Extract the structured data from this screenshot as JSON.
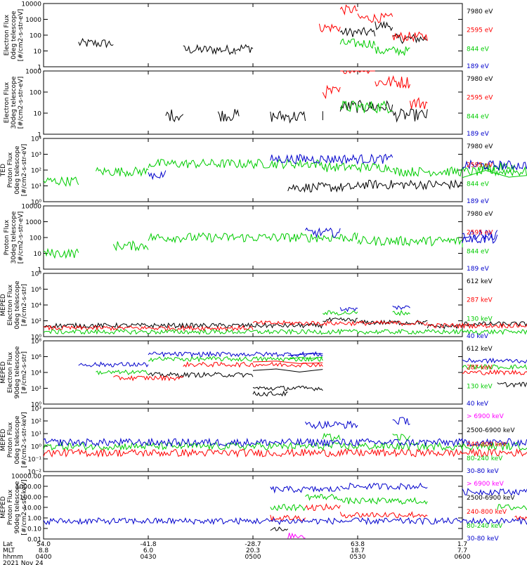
{
  "chart_data": {
    "type": "line",
    "x_axis": {
      "rows": [
        {
          "label": "Lat",
          "values": [
            "54.0",
            "-41.8",
            "-28.7",
            "63.8",
            "1.7"
          ]
        },
        {
          "label": "MLT",
          "values": [
            "8.8",
            "6.0",
            "20.3",
            "18.7",
            "7.7"
          ]
        },
        {
          "label": "hhmm",
          "values": [
            "0400",
            "0430",
            "0500",
            "0530",
            "0600"
          ]
        }
      ],
      "date": "2021 Nov 24"
    },
    "panels": [
      {
        "ylabel": [
          "Electron Flux",
          "0deg telescope",
          "[#/cm2-s-str-eV]"
        ],
        "scale": "log",
        "ticks": [
          "10000",
          "1000",
          "100",
          "10",
          "1"
        ],
        "series": [
          {
            "name": "7980 eV",
            "color": "#000000",
            "segments": [
              [
                4010,
                4020,
                30
              ],
              [
                4040,
                4055,
                12
              ],
              [
                4055,
                4100,
                15
              ],
              [
                4125,
                4135,
                150
              ],
              [
                4135,
                4140,
                400
              ],
              [
                4140,
                4150,
                60
              ],
              [
                4225,
                4235,
                30
              ],
              [
                4235,
                4245,
                80
              ],
              [
                4245,
                4255,
                20
              ],
              [
                4300,
                4320,
                20
              ]
            ]
          },
          {
            "name": "2595 eV",
            "color": "#ff0000",
            "segments": [
              [
                4119,
                4125,
                300
              ],
              [
                4125,
                4130,
                4000
              ],
              [
                4130,
                4140,
                1200
              ],
              [
                4140,
                4150,
                80
              ],
              [
                4225,
                4235,
                40
              ],
              [
                4235,
                4245,
                300
              ],
              [
                4245,
                4255,
                60
              ]
            ]
          },
          {
            "name": "844 eV",
            "color": "#00cc00",
            "segments": [
              [
                4125,
                4135,
                30
              ],
              [
                4135,
                4145,
                10
              ]
            ]
          },
          {
            "name": "189 eV",
            "color": "#0000cc",
            "segments": []
          }
        ]
      },
      {
        "ylabel": [
          "Electron Flux",
          "30deg telescope",
          "[#/cm2-s-str-eV]"
        ],
        "scale": "log",
        "ticks": [
          "1000",
          "100",
          "10",
          "1"
        ],
        "series": [
          {
            "name": "7980 eV",
            "color": "#000000",
            "segments": [
              [
                4035,
                4040,
                8
              ],
              [
                4050,
                4056,
                8
              ],
              [
                4065,
                4075,
                7
              ],
              [
                4080,
                4120,
                8
              ],
              [
                4125,
                4140,
                20
              ],
              [
                4140,
                4150,
                8
              ],
              [
                4225,
                4235,
                15
              ],
              [
                4235,
                4245,
                40
              ],
              [
                4245,
                4255,
                10
              ]
            ]
          },
          {
            "name": "2595 eV",
            "color": "#ff0000",
            "segments": [
              [
                4120,
                4125,
                100
              ],
              [
                4125,
                4135,
                1500
              ],
              [
                4135,
                4145,
                300
              ],
              [
                4145,
                4150,
                30
              ],
              [
                4225,
                4230,
                80
              ],
              [
                4230,
                4240,
                250
              ],
              [
                4240,
                4255,
                50
              ]
            ]
          },
          {
            "name": "844 eV",
            "color": "#00cc00",
            "segments": [
              [
                4125,
                4140,
                20
              ]
            ]
          },
          {
            "name": "189 eV",
            "color": "#0000cc",
            "segments": []
          }
        ]
      },
      {
        "ylabel": [
          "TED",
          "Proton Flux",
          "0deg telescope",
          "[#/cm2-s-str-eV]"
        ],
        "scale": "log",
        "ticks": [
          "10⁴",
          "10³",
          "10²",
          "10¹",
          "10⁰"
        ],
        "series": [
          {
            "name": "7980 eV",
            "color": "#000000",
            "segments": [
              [
                4110,
                4130,
                8
              ],
              [
                4130,
                4160,
                12
              ]
            ]
          },
          {
            "name": "2595 eV",
            "color": "#ff0000",
            "segments": []
          },
          {
            "name": "844 eV",
            "color": "#00cc00",
            "segments": [
              [
                4000,
                4010,
                20
              ],
              [
                4015,
                4030,
                80
              ],
              [
                4030,
                4080,
                250
              ],
              [
                4080,
                4140,
                150
              ],
              [
                4140,
                4180,
                80
              ],
              [
                4180,
                4200,
                60
              ],
              [
                4205,
                4215,
                150
              ],
              [
                4235,
                4245,
                20
              ],
              [
                4245,
                4260,
                100
              ],
              [
                4290,
                4300,
                20
              ],
              [
                4300,
                4320,
                50
              ]
            ]
          },
          {
            "name": "189 eV",
            "color": "#0000cc",
            "segments": [
              [
                4030,
                4035,
                50
              ],
              [
                4105,
                4140,
                500
              ],
              [
                4160,
                4180,
                200
              ],
              [
                4225,
                4250,
                2000
              ]
            ]
          }
        ]
      },
      {
        "ylabel": [
          "Proton Flux",
          "30deg telescope",
          "[#/cm2-s-str-eV]"
        ],
        "scale": "log",
        "ticks": [
          "10000",
          "1000",
          "100",
          "10",
          "1"
        ],
        "series": [
          {
            "name": "7980 eV",
            "color": "#000000",
            "segments": []
          },
          {
            "name": "2595 eV",
            "color": "#ff0000",
            "segments": []
          },
          {
            "name": "844 eV",
            "color": "#00cc00",
            "segments": [
              [
                4000,
                4010,
                10
              ],
              [
                4020,
                4030,
                30
              ],
              [
                4030,
                4090,
                100
              ],
              [
                4090,
                4160,
                60
              ],
              [
                4160,
                4200,
                40
              ],
              [
                4235,
                4240,
                10
              ],
              [
                4240,
                4260,
                40
              ],
              [
                4300,
                4320,
                80
              ]
            ]
          },
          {
            "name": "189 eV",
            "color": "#0000cc",
            "segments": [
              [
                4115,
                4125,
                200
              ],
              [
                4160,
                4170,
                150
              ],
              [
                4200,
                4210,
                80
              ],
              [
                4225,
                4240,
                1500
              ],
              [
                4260,
                4265,
                60
              ]
            ]
          }
        ]
      },
      {
        "ylabel": [
          "MEPED",
          "Electron Flux",
          "0deg telescope",
          "[#/cm2-s-str]"
        ],
        "scale": "log",
        "ticks": [
          "10⁸",
          "10⁶",
          "10⁴",
          "10²",
          "10⁰"
        ],
        "series": [
          {
            "name": "612 keV",
            "color": "#000000",
            "segments": [
              [
                4000,
                4120,
                25
              ],
              [
                4120,
                4130,
                120
              ],
              [
                4130,
                4150,
                60
              ],
              [
                4150,
                4200,
                20
              ],
              [
                4200,
                4250,
                40
              ],
              [
                4250,
                4320,
                15
              ]
            ]
          },
          {
            "name": "287 keV",
            "color": "#ff0000",
            "segments": [
              [
                4000,
                4100,
                12
              ],
              [
                4100,
                4150,
                50
              ],
              [
                4150,
                4250,
                25
              ],
              [
                4250,
                4320,
                8
              ]
            ]
          },
          {
            "name": "130 keV",
            "color": "#00cc00",
            "segments": [
              [
                4000,
                4320,
                4
              ],
              [
                4120,
                4130,
                1000
              ],
              [
                4140,
                4145,
                1000
              ]
            ]
          },
          {
            "name": "40 keV",
            "color": "#0000cc",
            "segments": [
              [
                4125,
                4130,
                3000
              ],
              [
                4140,
                4145,
                5000
              ],
              [
                4225,
                4245,
                3000
              ],
              [
                4245,
                4260,
                30000
              ]
            ]
          }
        ]
      },
      {
        "ylabel": [
          "MEPED",
          "Electron Flux",
          "90deg telescope",
          "[#/cm2-s-str]"
        ],
        "scale": "log",
        "ticks": [
          "10⁸",
          "10⁶",
          "10⁴",
          "10²",
          "10⁰"
        ],
        "series": [
          {
            "name": "612 keV",
            "color": "#000000",
            "segments": [
              [
                4030,
                4060,
                5000
              ],
              [
                4060,
                4080,
                100
              ],
              [
                4080,
                4100,
                20000
              ],
              [
                4100,
                4110,
                20
              ],
              [
                4210,
                4230,
                300
              ],
              [
                4230,
                4260,
                300
              ]
            ]
          },
          {
            "name": "287 keV",
            "color": "#ff0000",
            "segments": [
              [
                4020,
                4040,
                2000
              ],
              [
                4040,
                4080,
                100000
              ],
              [
                4080,
                4100,
                150000
              ],
              [
                4200,
                4230,
                10000
              ],
              [
                4240,
                4270,
                80000
              ]
            ]
          },
          {
            "name": "130 keV",
            "color": "#00cc00",
            "segments": [
              [
                4015,
                4030,
                10000
              ],
              [
                4030,
                4080,
                500000
              ],
              [
                4080,
                4110,
                500000
              ],
              [
                4200,
                4230,
                50000
              ],
              [
                4240,
                4270,
                300000
              ]
            ]
          },
          {
            "name": "40 keV",
            "color": "#0000cc",
            "segments": [
              [
                4010,
                4030,
                100000
              ],
              [
                4030,
                4080,
                2000000
              ],
              [
                4080,
                4110,
                2000000
              ],
              [
                4200,
                4230,
                300000
              ],
              [
                4240,
                4270,
                1000000
              ]
            ]
          }
        ]
      },
      {
        "ylabel": [
          "MEPED",
          "Proton Flux",
          "0deg telescope",
          "[#/cm2-s-str-keV]"
        ],
        "scale": "log",
        "ticks": [
          "10³",
          "10²",
          "10¹",
          "10⁰",
          "10⁻¹",
          "10⁻²"
        ],
        "series": [
          {
            "name": "> 6900 keV",
            "color": "#ff00ff",
            "segments": []
          },
          {
            "name": "2500-6900 keV",
            "color": "#000000",
            "segments": []
          },
          {
            "name": "240-800 keV",
            "color": "#ff0000",
            "segments": [
              [
                4000,
                4320,
                0.3
              ]
            ]
          },
          {
            "name": "80-240 keV",
            "color": "#00cc00",
            "segments": [
              [
                4000,
                4320,
                1
              ],
              [
                4120,
                4125,
                5
              ],
              [
                4140,
                4145,
                5
              ]
            ]
          },
          {
            "name": "30-80 keV",
            "color": "#0000cc",
            "segments": [
              [
                4000,
                4320,
                2
              ],
              [
                4115,
                4130,
                50
              ],
              [
                4140,
                4145,
                100
              ],
              [
                4225,
                4255,
                50
              ]
            ]
          }
        ]
      },
      {
        "ylabel": [
          "MEPED",
          "Proton Flux",
          "90deg telescope",
          "[#/cm2-s-str-keV]"
        ],
        "scale": "log",
        "ticks": [
          "10000.00",
          "1000.00",
          "100.00",
          "10.00",
          "1.00",
          "0.10",
          "0.01"
        ],
        "series": [
          {
            "name": "> 6900 keV",
            "color": "#ff00ff",
            "segments": [
              [
                4110,
                4115,
                0.02
              ]
            ]
          },
          {
            "name": "2500-6900 keV",
            "color": "#000000",
            "segments": [
              [
                4105,
                4110,
                0.1
              ]
            ]
          },
          {
            "name": "240-800 keV",
            "color": "#ff0000",
            "segments": [
              [
                4105,
                4115,
                1
              ],
              [
                4115,
                4125,
                10
              ],
              [
                4125,
                4150,
                2
              ],
              [
                4215,
                4235,
                0.8
              ],
              [
                4235,
                4245,
                0.3
              ]
            ]
          },
          {
            "name": "80-240 keV",
            "color": "#00cc00",
            "segments": [
              [
                4105,
                4115,
                10
              ],
              [
                4115,
                4125,
                100
              ],
              [
                4125,
                4150,
                40
              ],
              [
                4210,
                4230,
                10
              ],
              [
                4235,
                4255,
                20
              ]
            ]
          },
          {
            "name": "30-80 keV",
            "color": "#0000cc",
            "segments": [
              [
                4000,
                4320,
                0.5
              ],
              [
                4105,
                4125,
                500
              ],
              [
                4125,
                4150,
                1000
              ],
              [
                4200,
                4225,
                300
              ],
              [
                4225,
                4265,
                500
              ]
            ]
          }
        ]
      }
    ]
  }
}
